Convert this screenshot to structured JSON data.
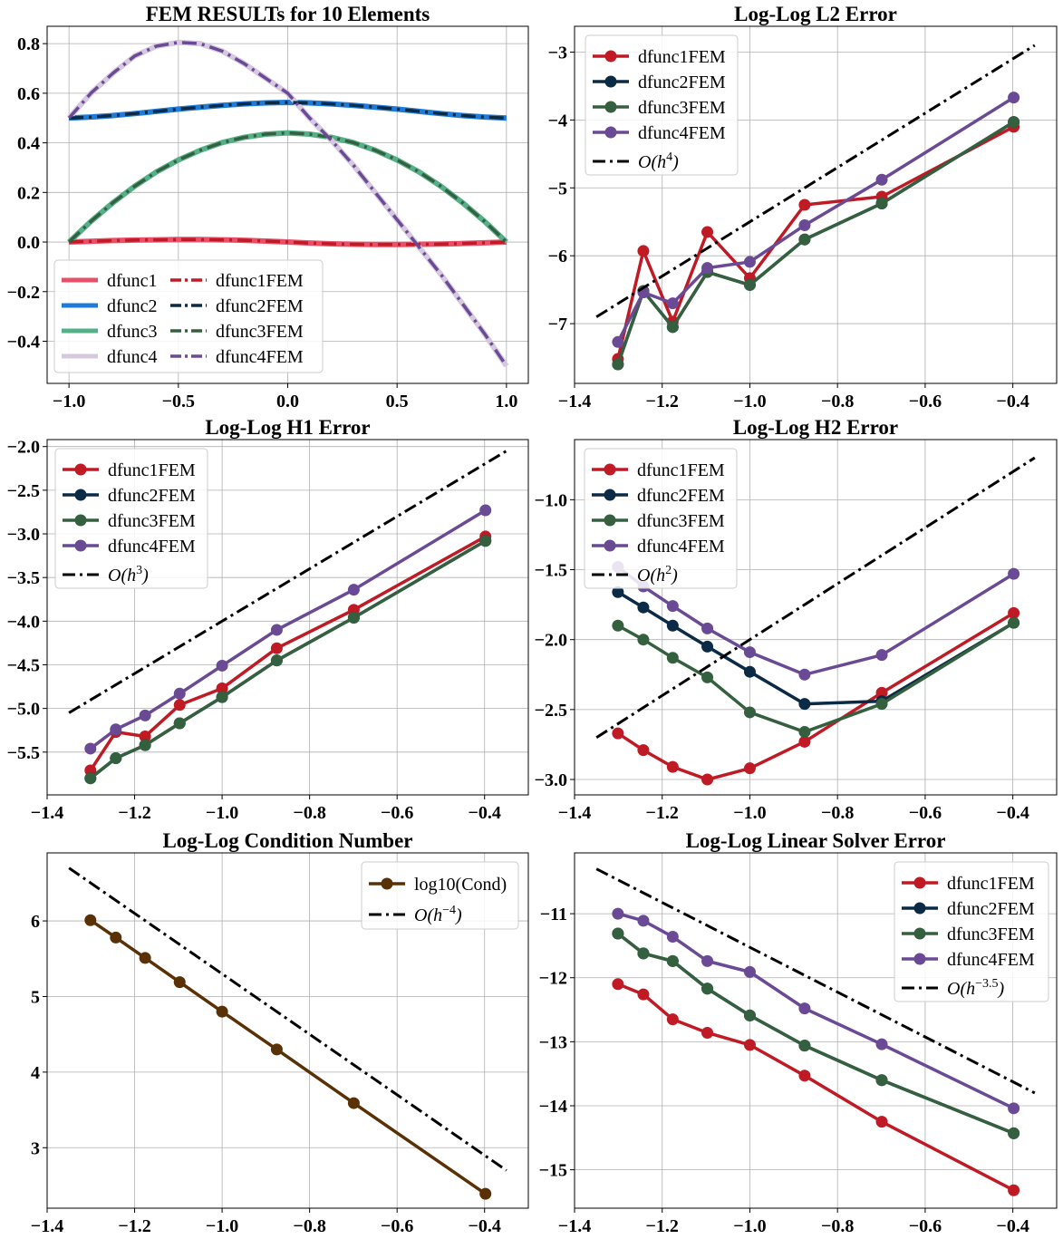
{
  "chart_data": [
    {
      "type": "line",
      "title": "FEM  RESULTs  for 10 Elements",
      "xlim": [
        -1.1,
        1.1
      ],
      "ylim": [
        -0.57,
        0.87
      ],
      "xticks": [
        -1.0,
        -0.5,
        0.0,
        0.5,
        1.0
      ],
      "xtick_labels": [
        "−1.0",
        "−0.5",
        "0.0",
        "0.5",
        "1.0"
      ],
      "yticks": [
        -0.4,
        -0.2,
        0.0,
        0.2,
        0.4,
        0.6,
        0.8
      ],
      "ytick_labels": [
        "−0.4",
        "−0.2",
        "0.0",
        "0.2",
        "0.4",
        "0.6",
        "0.8"
      ],
      "grid": true,
      "legend_position": "lower-left",
      "legend_columns": 2,
      "x": [
        -1.0,
        -0.9,
        -0.8,
        -0.7,
        -0.6,
        -0.5,
        -0.4,
        -0.3,
        -0.2,
        -0.1,
        0.0,
        0.1,
        0.2,
        0.3,
        0.4,
        0.5,
        0.6,
        0.7,
        0.8,
        0.9,
        1.0
      ],
      "series": [
        {
          "name": "dfunc1",
          "color": "#e8506a",
          "style": "solid",
          "values": [
            0.0,
            0.003,
            0.006,
            0.008,
            0.009,
            0.01,
            0.01,
            0.009,
            0.007,
            0.004,
            0.0,
            -0.004,
            -0.007,
            -0.009,
            -0.01,
            -0.01,
            -0.009,
            -0.008,
            -0.006,
            -0.003,
            0.0
          ]
        },
        {
          "name": "dfunc2",
          "color": "#1e7bd8",
          "style": "solid",
          "values": [
            0.5,
            0.504,
            0.51,
            0.518,
            0.527,
            0.536,
            0.544,
            0.551,
            0.557,
            0.561,
            0.563,
            0.561,
            0.557,
            0.551,
            0.544,
            0.536,
            0.527,
            0.518,
            0.51,
            0.504,
            0.5
          ]
        },
        {
          "name": "dfunc3",
          "color": "#55b08a",
          "style": "solid",
          "values": [
            0.0,
            0.083,
            0.158,
            0.225,
            0.283,
            0.331,
            0.37,
            0.401,
            0.422,
            0.435,
            0.44,
            0.435,
            0.422,
            0.401,
            0.37,
            0.331,
            0.283,
            0.225,
            0.158,
            0.083,
            0.0
          ]
        },
        {
          "name": "dfunc4",
          "color": "#d6c8de",
          "style": "solid",
          "values": [
            0.5,
            0.6,
            0.68,
            0.75,
            0.79,
            0.805,
            0.8,
            0.77,
            0.72,
            0.66,
            0.6,
            0.5,
            0.41,
            0.31,
            0.2,
            0.09,
            -0.02,
            -0.13,
            -0.25,
            -0.37,
            -0.5
          ]
        },
        {
          "name": "dfunc1FEM",
          "color": "#c01a25",
          "style": "dashdot",
          "values": [
            0.0,
            0.003,
            0.006,
            0.008,
            0.009,
            0.01,
            0.01,
            0.009,
            0.007,
            0.004,
            0.0,
            -0.004,
            -0.007,
            -0.009,
            -0.01,
            -0.01,
            -0.009,
            -0.008,
            -0.006,
            -0.003,
            0.0
          ]
        },
        {
          "name": "dfunc2FEM",
          "color": "#0a2a45",
          "style": "dashdot",
          "values": [
            0.5,
            0.504,
            0.51,
            0.518,
            0.527,
            0.536,
            0.544,
            0.551,
            0.557,
            0.561,
            0.563,
            0.561,
            0.557,
            0.551,
            0.544,
            0.536,
            0.527,
            0.518,
            0.51,
            0.504,
            0.5
          ]
        },
        {
          "name": "dfunc3FEM",
          "color": "#35603f",
          "style": "dashdot",
          "values": [
            0.0,
            0.083,
            0.158,
            0.225,
            0.283,
            0.331,
            0.37,
            0.401,
            0.422,
            0.435,
            0.44,
            0.435,
            0.422,
            0.401,
            0.37,
            0.331,
            0.283,
            0.225,
            0.158,
            0.083,
            0.0
          ]
        },
        {
          "name": "dfunc4FEM",
          "color": "#6a4a95",
          "style": "dashdot",
          "values": [
            0.5,
            0.6,
            0.68,
            0.75,
            0.79,
            0.805,
            0.8,
            0.77,
            0.72,
            0.66,
            0.6,
            0.5,
            0.41,
            0.31,
            0.2,
            0.09,
            -0.02,
            -0.13,
            -0.25,
            -0.37,
            -0.5
          ]
        }
      ]
    },
    {
      "type": "line",
      "title": "Log-Log L2 Error",
      "xlim": [
        -1.4,
        -0.3
      ],
      "ylim": [
        -7.88,
        -2.62
      ],
      "xticks": [
        -1.4,
        -1.2,
        -1.0,
        -0.8,
        -0.6,
        -0.4
      ],
      "xtick_labels": [
        "−1.4",
        "−1.2",
        "−1.0",
        "−0.8",
        "−0.6",
        "−0.4"
      ],
      "yticks": [
        -7,
        -6,
        -5,
        -4,
        -3
      ],
      "ytick_labels": [
        "−7",
        "−6",
        "−5",
        "−4",
        "−3"
      ],
      "grid": true,
      "legend_position": "top-left",
      "x": [
        -1.301,
        -1.243,
        -1.176,
        -1.097,
        -1.0,
        -0.875,
        -0.699,
        -0.398
      ],
      "series": [
        {
          "name": "dfunc1FEM",
          "color": "#c01a25",
          "markers": true,
          "values": [
            -7.52,
            -5.93,
            -6.97,
            -5.65,
            -6.33,
            -5.25,
            -5.13,
            -4.1
          ]
        },
        {
          "name": "dfunc2FEM",
          "color": "#0a2a45",
          "markers": true,
          "values": [
            -7.6,
            -6.52,
            -7.05,
            -6.24,
            -6.43,
            -5.76,
            -5.23,
            -4.03
          ]
        },
        {
          "name": "dfunc3FEM",
          "color": "#35603f",
          "markers": true,
          "values": [
            -7.6,
            -6.52,
            -7.05,
            -6.24,
            -6.43,
            -5.76,
            -5.23,
            -4.03
          ]
        },
        {
          "name": "dfunc4FEM",
          "color": "#6a4a95",
          "markers": true,
          "values": [
            -7.27,
            -6.54,
            -6.7,
            -6.18,
            -6.09,
            -5.55,
            -4.88,
            -3.67
          ]
        },
        {
          "name": "$O(h^4)$",
          "label_base": "O(h",
          "label_exp": "4",
          "color": "#000000",
          "style": "dashdot",
          "x": [
            -1.35,
            -0.35
          ],
          "values": [
            -6.9,
            -2.9
          ]
        }
      ]
    },
    {
      "type": "line",
      "title": "Log-Log H1 Error",
      "xlim": [
        -1.4,
        -0.3
      ],
      "ylim": [
        -5.99,
        -1.92
      ],
      "xticks": [
        -1.4,
        -1.2,
        -1.0,
        -0.8,
        -0.6,
        -0.4
      ],
      "xtick_labels": [
        "−1.4",
        "−1.2",
        "−1.0",
        "−0.8",
        "−0.6",
        "−0.4"
      ],
      "yticks": [
        -5.5,
        -5.0,
        -4.5,
        -4.0,
        -3.5,
        -3.0,
        -2.5,
        -2.0
      ],
      "ytick_labels": [
        "−5.5",
        "−5.0",
        "−4.5",
        "−4.0",
        "−3.5",
        "−3.0",
        "−2.5",
        "−2.0"
      ],
      "grid": true,
      "legend_position": "top-left",
      "x": [
        -1.301,
        -1.243,
        -1.176,
        -1.097,
        -1.0,
        -0.875,
        -0.699,
        -0.398
      ],
      "series": [
        {
          "name": "dfunc1FEM",
          "color": "#c01a25",
          "markers": true,
          "values": [
            -5.71,
            -5.27,
            -5.32,
            -4.96,
            -4.77,
            -4.31,
            -3.87,
            -3.03
          ]
        },
        {
          "name": "dfunc2FEM",
          "color": "#0a2a45",
          "markers": true,
          "values": [
            -5.8,
            -5.57,
            -5.42,
            -5.17,
            -4.87,
            -4.45,
            -3.96,
            -3.08
          ]
        },
        {
          "name": "dfunc3FEM",
          "color": "#35603f",
          "markers": true,
          "values": [
            -5.8,
            -5.57,
            -5.42,
            -5.17,
            -4.87,
            -4.45,
            -3.96,
            -3.08
          ]
        },
        {
          "name": "dfunc4FEM",
          "color": "#6a4a95",
          "markers": true,
          "values": [
            -5.46,
            -5.24,
            -5.08,
            -4.83,
            -4.51,
            -4.1,
            -3.64,
            -2.73
          ]
        },
        {
          "name": "$O(h^3)$",
          "label_base": "O(h",
          "label_exp": "3",
          "color": "#000000",
          "style": "dashdot",
          "x": [
            -1.35,
            -0.35
          ],
          "values": [
            -5.05,
            -2.05
          ]
        }
      ]
    },
    {
      "type": "line",
      "title": "Log-Log H2 Error",
      "xlim": [
        -1.4,
        -0.3
      ],
      "ylim": [
        -3.11,
        -0.57
      ],
      "xticks": [
        -1.4,
        -1.2,
        -1.0,
        -0.8,
        -0.6,
        -0.4
      ],
      "xtick_labels": [
        "−1.4",
        "−1.2",
        "−1.0",
        "−0.8",
        "−0.6",
        "−0.4"
      ],
      "yticks": [
        -3.0,
        -2.5,
        -2.0,
        -1.5,
        -1.0
      ],
      "ytick_labels": [
        "−3.0",
        "−2.5",
        "−2.0",
        "−1.5",
        "−1.0"
      ],
      "grid": true,
      "legend_position": "top-left",
      "x": [
        -1.301,
        -1.243,
        -1.176,
        -1.097,
        -1.0,
        -0.875,
        -0.699,
        -0.398
      ],
      "series": [
        {
          "name": "dfunc1FEM",
          "color": "#c01a25",
          "markers": true,
          "values": [
            -2.67,
            -2.79,
            -2.91,
            -3.0,
            -2.92,
            -2.73,
            -2.38,
            -1.81
          ]
        },
        {
          "name": "dfunc2FEM",
          "color": "#0a2a45",
          "markers": true,
          "values": [
            -1.66,
            -1.77,
            -1.9,
            -2.05,
            -2.23,
            -2.46,
            -2.44,
            -1.88
          ]
        },
        {
          "name": "dfunc3FEM",
          "color": "#35603f",
          "markers": true,
          "values": [
            -1.9,
            -2.0,
            -2.13,
            -2.27,
            -2.52,
            -2.66,
            -2.46,
            -1.88
          ]
        },
        {
          "name": "dfunc4FEM",
          "color": "#6a4a95",
          "markers": true,
          "values": [
            -1.48,
            -1.62,
            -1.76,
            -1.92,
            -2.09,
            -2.25,
            -2.11,
            -1.53
          ]
        },
        {
          "name": "$O(h^2)$",
          "label_base": "O(h",
          "label_exp": "2",
          "color": "#000000",
          "style": "dashdot",
          "x": [
            -1.35,
            -0.35
          ],
          "values": [
            -2.7,
            -0.7
          ]
        }
      ]
    },
    {
      "type": "line",
      "title": "Log-Log Condition Number",
      "xlim": [
        -1.4,
        -0.3
      ],
      "ylim": [
        2.2,
        6.9
      ],
      "xticks": [
        -1.4,
        -1.2,
        -1.0,
        -0.8,
        -0.6,
        -0.4
      ],
      "xtick_labels": [
        "−1.4",
        "−1.2",
        "−1.0",
        "−0.8",
        "−0.6",
        "−0.4"
      ],
      "yticks": [
        3,
        4,
        5,
        6
      ],
      "ytick_labels": [
        "3",
        "4",
        "5",
        "6"
      ],
      "grid": true,
      "legend_position": "top-right",
      "x": [
        -1.301,
        -1.243,
        -1.176,
        -1.097,
        -1.0,
        -0.875,
        -0.699,
        -0.398
      ],
      "series": [
        {
          "name": "log10(Cond)",
          "color": "#5a3005",
          "markers": true,
          "values": [
            6.01,
            5.78,
            5.51,
            5.19,
            4.8,
            4.3,
            3.59,
            2.39
          ]
        },
        {
          "name": "$O(h^{-4})$",
          "label_base": "O(h",
          "label_exp": "−4",
          "color": "#000000",
          "style": "dashdot",
          "x": [
            -1.35,
            -0.35
          ],
          "values": [
            6.7,
            2.7
          ]
        }
      ]
    },
    {
      "type": "line",
      "title": "Log-Log Linear Solver Error",
      "xlim": [
        -1.4,
        -0.3
      ],
      "ylim": [
        -15.6,
        -10.05
      ],
      "xticks": [
        -1.4,
        -1.2,
        -1.0,
        -0.8,
        -0.6,
        -0.4
      ],
      "xtick_labels": [
        "−1.4",
        "−1.2",
        "−1.0",
        "−0.8",
        "−0.6",
        "−0.4"
      ],
      "yticks": [
        -15,
        -14,
        -13,
        -12,
        -11
      ],
      "ytick_labels": [
        "−15",
        "−14",
        "−13",
        "−12",
        "−11"
      ],
      "grid": true,
      "legend_position": "top-right",
      "x": [
        -1.301,
        -1.243,
        -1.176,
        -1.097,
        -1.0,
        -0.875,
        -0.699,
        -0.398
      ],
      "series": [
        {
          "name": "dfunc1FEM",
          "color": "#c01a25",
          "markers": true,
          "values": [
            -12.1,
            -12.26,
            -12.65,
            -12.86,
            -13.05,
            -13.53,
            -14.25,
            -15.32
          ]
        },
        {
          "name": "dfunc2FEM",
          "color": "#0a2a45",
          "markers": true,
          "values": [
            -11.31,
            -11.62,
            -11.74,
            -12.17,
            -12.59,
            -13.06,
            -13.6,
            -14.43
          ]
        },
        {
          "name": "dfunc3FEM",
          "color": "#35603f",
          "markers": true,
          "values": [
            -11.31,
            -11.62,
            -11.74,
            -12.17,
            -12.59,
            -13.06,
            -13.6,
            -14.43
          ]
        },
        {
          "name": "dfunc4FEM",
          "color": "#6a4a95",
          "markers": true,
          "values": [
            -11.0,
            -11.11,
            -11.36,
            -11.74,
            -11.91,
            -12.48,
            -13.04,
            -14.04
          ]
        },
        {
          "name": "$O(h^{-3.5})$",
          "label_base": "O(h",
          "label_exp": "−3.5",
          "color": "#000000",
          "style": "dashdot",
          "x": [
            -1.35,
            -0.35
          ],
          "values": [
            -10.3,
            -13.8
          ]
        }
      ]
    }
  ]
}
